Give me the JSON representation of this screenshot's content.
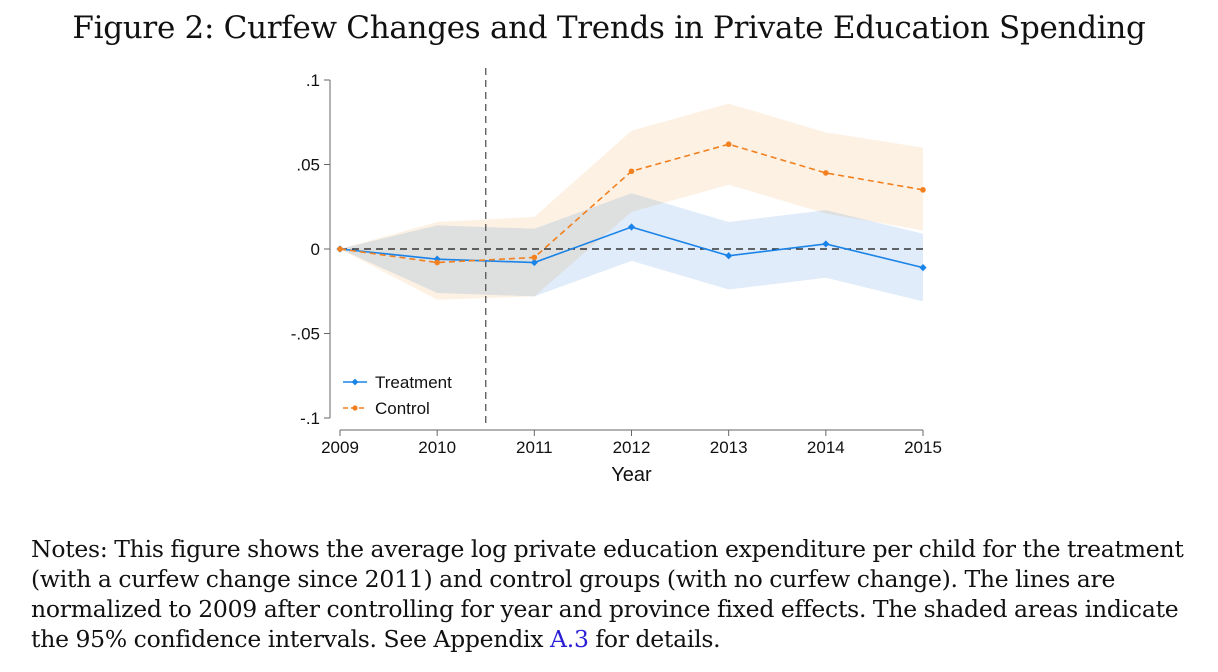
{
  "figure": {
    "title": "Figure 2: Curfew Changes and Trends in Private Education Spending"
  },
  "notes": {
    "text_before_link": "Notes: This figure shows the average log private education expenditure per child for the treatment (with a curfew change since 2011) and control groups (with no curfew change). The lines are normalized to 2009 after controlling for year and province fixed effects. The shaded areas indicate the 95% confidence intervals. See Appendix ",
    "link_text": "A.3",
    "text_after_link": " for details."
  },
  "colors": {
    "treatment": "#1a83e8",
    "treatment_ci": "#dbe9f9",
    "control": "#f2801e",
    "control_ci": "#fdeedf",
    "overlap_ci": "#e8e8e8",
    "link": "#2a1fd6"
  },
  "chart_data": {
    "type": "line",
    "title": "",
    "xlabel": "Year",
    "ylabel": "",
    "x": [
      2009,
      2010,
      2011,
      2012,
      2013,
      2014,
      2015
    ],
    "x_tick_labels": [
      "2009",
      "2010",
      "2011",
      "2012",
      "2013",
      "2014",
      "2015"
    ],
    "ylim": [
      -0.1,
      0.1
    ],
    "y_ticks": [
      -0.1,
      -0.05,
      0,
      0.05,
      0.1
    ],
    "y_tick_labels": [
      "-.1",
      "-.05",
      "0",
      ".05",
      ".1"
    ],
    "reference_lines": {
      "horizontal_y": 0,
      "vertical_x": 2010.5
    },
    "series": [
      {
        "name": "Treatment",
        "values": [
          0,
          -0.006,
          -0.008,
          0.013,
          -0.004,
          0.003,
          -0.011
        ],
        "ci_lower": [
          0,
          -0.026,
          -0.028,
          -0.007,
          -0.024,
          -0.017,
          -0.031
        ],
        "ci_upper": [
          0,
          0.014,
          0.012,
          0.033,
          0.016,
          0.023,
          0.009
        ],
        "style": "solid",
        "marker": "diamond"
      },
      {
        "name": "Control",
        "values": [
          0,
          -0.008,
          -0.005,
          0.046,
          0.062,
          0.045,
          0.035
        ],
        "ci_lower": [
          0,
          -0.03,
          -0.028,
          0.022,
          0.038,
          0.021,
          0.011
        ],
        "ci_upper": [
          0,
          0.016,
          0.019,
          0.07,
          0.086,
          0.069,
          0.06
        ],
        "style": "dashed",
        "marker": "dot"
      }
    ],
    "legend": {
      "position": "bottom-left",
      "entries": [
        "Treatment",
        "Control"
      ]
    },
    "grid": false
  }
}
